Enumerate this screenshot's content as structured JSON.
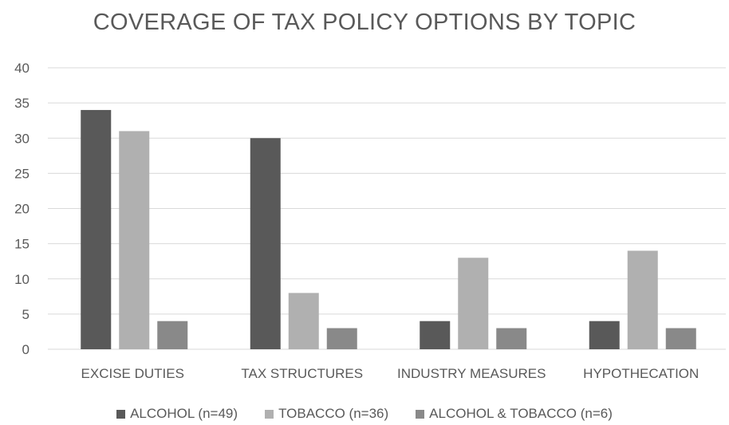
{
  "chart_data": {
    "type": "bar",
    "title": "COVERAGE OF TAX POLICY OPTIONS BY TOPIC",
    "xlabel": "",
    "ylabel": "",
    "categories": [
      "EXCISE DUTIES",
      "TAX STRUCTURES",
      "INDUSTRY MEASURES",
      "HYPOTHECATION"
    ],
    "series": [
      {
        "name": "ALCOHOL (n=49)",
        "color": "#595959",
        "values": [
          34,
          30,
          4,
          4
        ]
      },
      {
        "name": "TOBACCO (n=36)",
        "color": "#b0b0b0",
        "values": [
          31,
          8,
          13,
          14
        ]
      },
      {
        "name": "ALCOHOL & TOBACCO (n=6)",
        "color": "#898989",
        "values": [
          4,
          3,
          3,
          3
        ]
      }
    ],
    "ylim": [
      0,
      40
    ],
    "yticks": [
      0,
      5,
      10,
      15,
      20,
      25,
      30,
      35,
      40
    ],
    "grid": true,
    "legend_position": "bottom"
  }
}
